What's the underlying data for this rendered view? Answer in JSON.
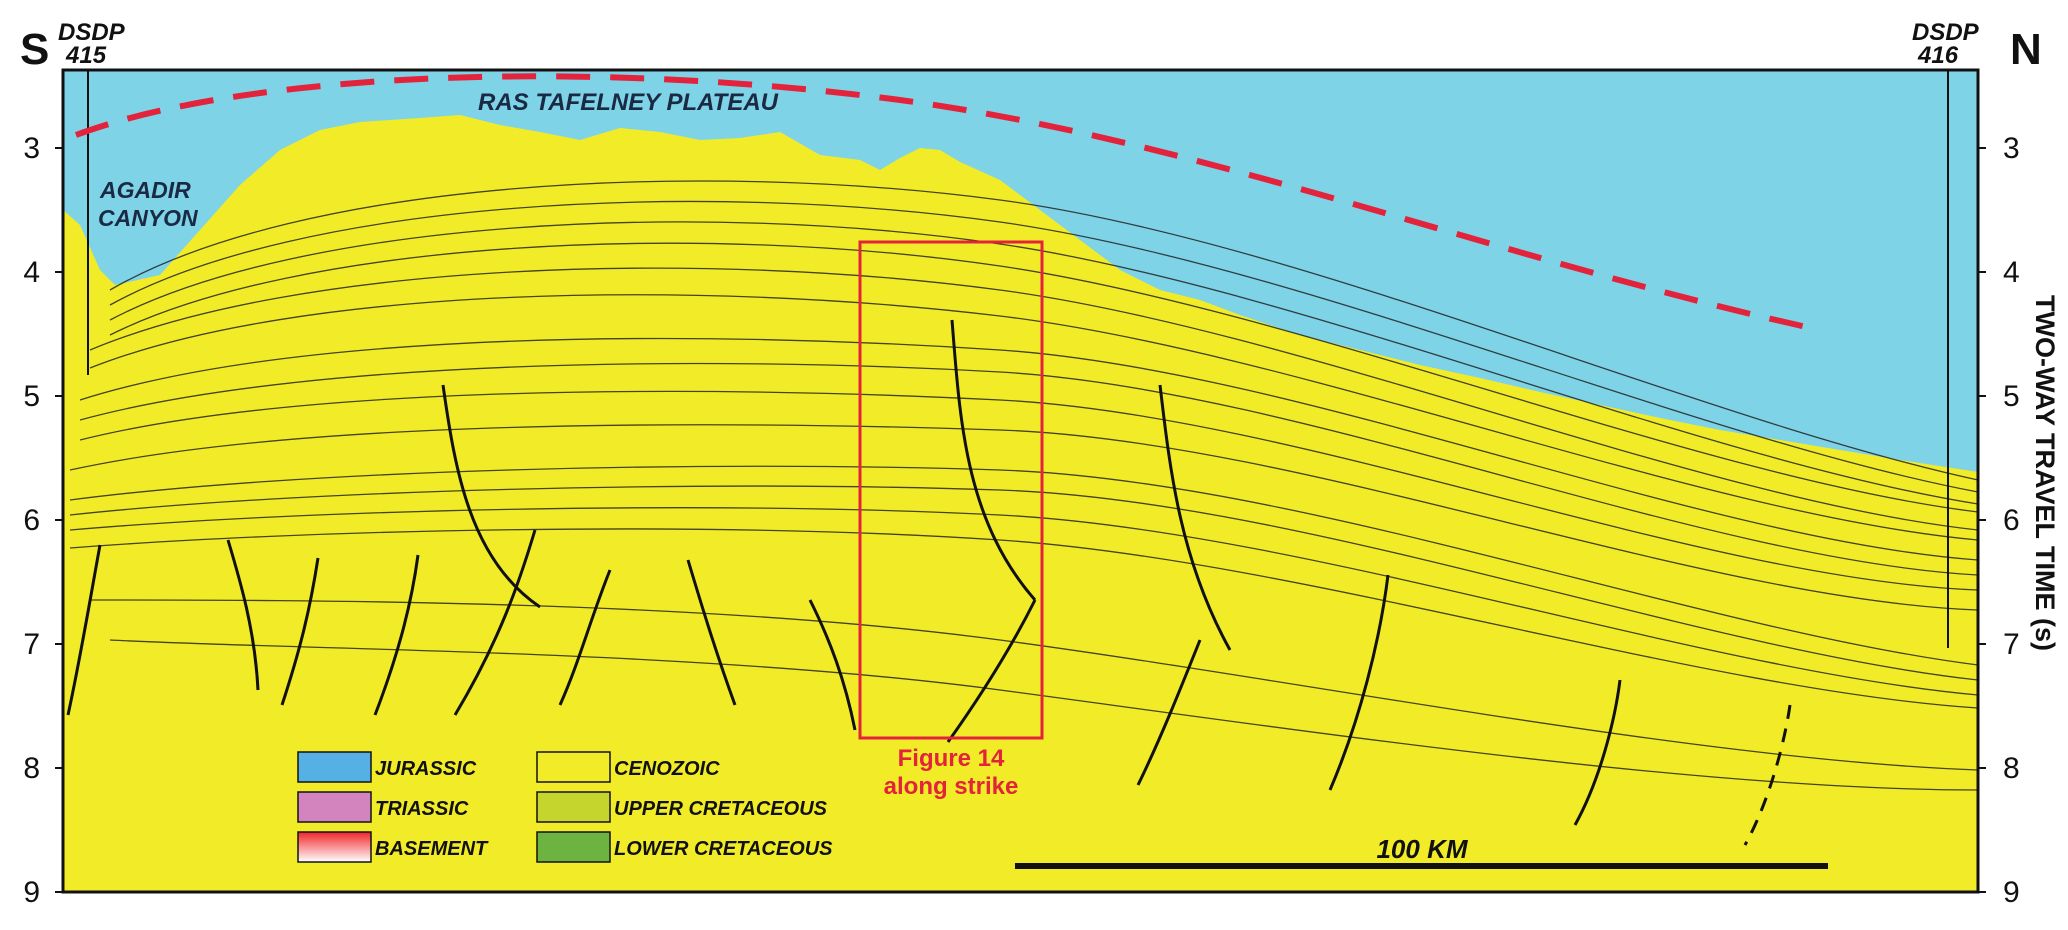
{
  "figure": {
    "dir_left": "S",
    "dir_right": "N",
    "well_left": {
      "name": "DSDP",
      "number": "415"
    },
    "well_right": {
      "name": "DSDP",
      "number": "416"
    },
    "y_axis_title": "TWO-WAY TRAVEL TIME (s)",
    "y_ticks": [
      "3",
      "4",
      "5",
      "6",
      "7",
      "8",
      "9"
    ],
    "plateau_label": "RAS TAFELNEY PLATEAU",
    "canyon_label_1": "AGADIR",
    "canyon_label_2": "CANYON",
    "box_label_1": "Figure 14",
    "box_label_2": "along strike",
    "scale_label": "100 KM"
  },
  "legend": {
    "items": [
      {
        "label": "JURASSIC",
        "color": "#55b0e3"
      },
      {
        "label": "TRIASSIC",
        "color": "#d384bf"
      },
      {
        "label": "BASEMENT",
        "color": "#f0262a"
      },
      {
        "label": "CENOZOIC",
        "color": "#f2ec28"
      },
      {
        "label": "UPPER CRETACEOUS",
        "color": "#c5d52d"
      },
      {
        "label": "LOWER CRETACEOUS",
        "color": "#6db33f"
      }
    ]
  },
  "colors": {
    "water": "#7fd3e6",
    "cenozoic": "#f2ec28",
    "upper_cretaceous": "#c5d52d",
    "lower_cretaceous": "#6db33f",
    "jurassic": "#55b0e3",
    "triassic": "#d384bf",
    "basement": "#f0262a",
    "annotation_red": "#e2233b"
  }
}
